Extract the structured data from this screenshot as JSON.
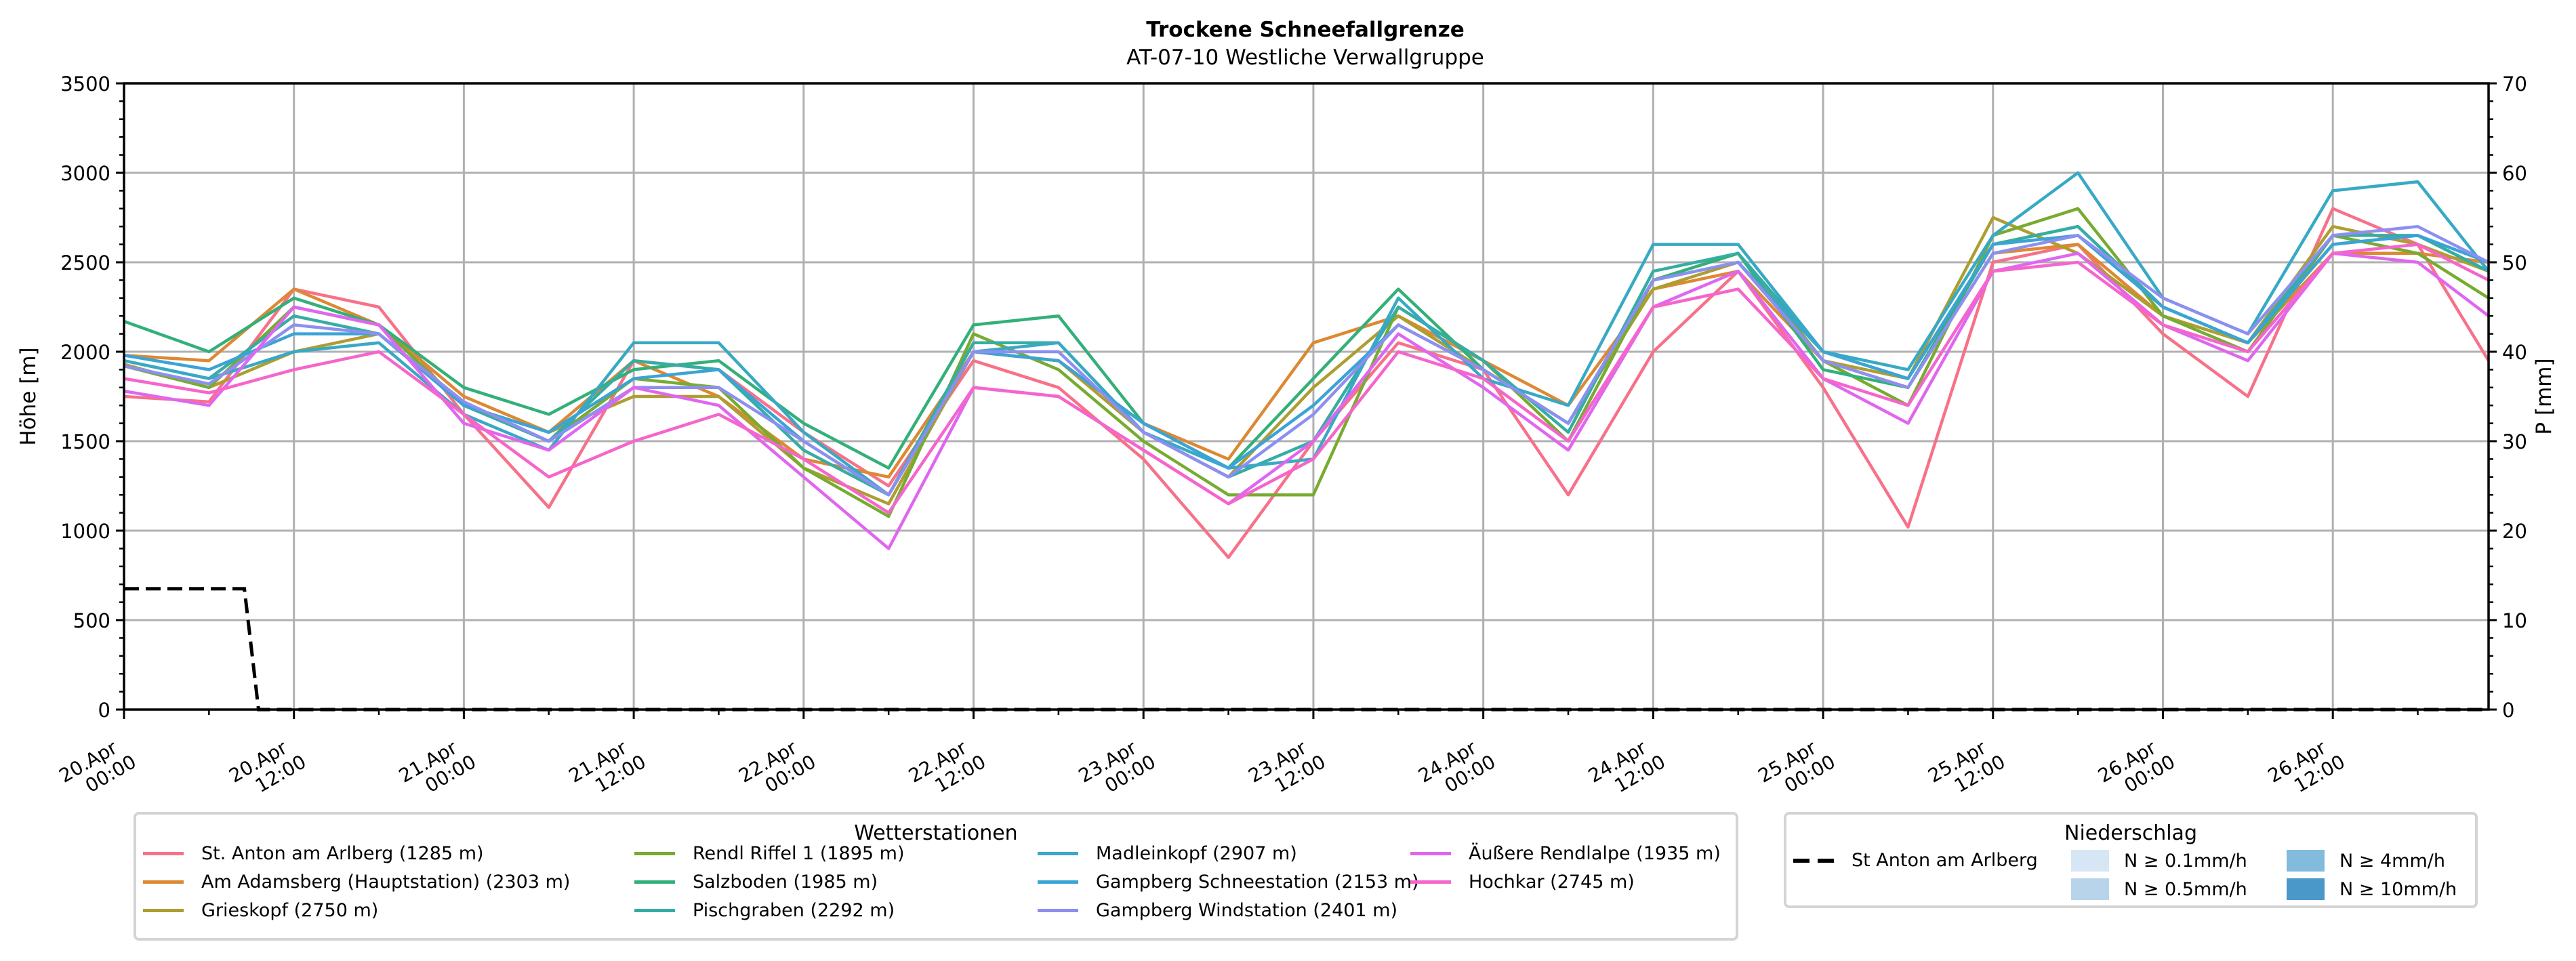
{
  "chart_data": {
    "type": "line",
    "title": "Trockene Schneefallgrenze",
    "subtitle": "AT-07-10 Westliche Verwallgruppe",
    "ylabel": "Höhe [m]",
    "y2label": "P [mm]",
    "ylim": [
      0,
      3500
    ],
    "y2lim": [
      0,
      70
    ],
    "yticks": [
      "0",
      "500",
      "1000",
      "1500",
      "2000",
      "2500",
      "3000",
      "3500"
    ],
    "y2ticks": [
      "0",
      "10",
      "20",
      "30",
      "40",
      "50",
      "60",
      "70"
    ],
    "xlim_hours": [
      0,
      167
    ],
    "x_start": "20.Apr 00:00",
    "xticks": [
      {
        "h": 0,
        "l1": "20.Apr",
        "l2": "00:00"
      },
      {
        "h": 12,
        "l1": "20.Apr",
        "l2": "12:00"
      },
      {
        "h": 24,
        "l1": "21.Apr",
        "l2": "00:00"
      },
      {
        "h": 36,
        "l1": "21.Apr",
        "l2": "12:00"
      },
      {
        "h": 48,
        "l1": "22.Apr",
        "l2": "00:00"
      },
      {
        "h": 60,
        "l1": "22.Apr",
        "l2": "12:00"
      },
      {
        "h": 72,
        "l1": "23.Apr",
        "l2": "00:00"
      },
      {
        "h": 84,
        "l1": "23.Apr",
        "l2": "12:00"
      },
      {
        "h": 96,
        "l1": "24.Apr",
        "l2": "00:00"
      },
      {
        "h": 108,
        "l1": "24.Apr",
        "l2": "12:00"
      },
      {
        "h": 120,
        "l1": "25.Apr",
        "l2": "00:00"
      },
      {
        "h": 132,
        "l1": "25.Apr",
        "l2": "12:00"
      },
      {
        "h": 144,
        "l1": "26.Apr",
        "l2": "00:00"
      },
      {
        "h": 156,
        "l1": "26.Apr",
        "l2": "12:00"
      }
    ],
    "grid": true,
    "x_hours": [
      0,
      6,
      12,
      18,
      24,
      30,
      36,
      42,
      48,
      54,
      60,
      66,
      72,
      78,
      84,
      90,
      96,
      102,
      108,
      114,
      120,
      126,
      132,
      138,
      144,
      150,
      156,
      162,
      167
    ],
    "series": [
      {
        "name": "St. Anton am Arlberg (1285 m)",
        "color": "#f77189",
        "values": [
          1750,
          1720,
          2350,
          2250,
          1650,
          1130,
          1950,
          1900,
          1550,
          1250,
          1950,
          1800,
          1400,
          850,
          1500,
          2050,
          1900,
          1200,
          2000,
          2450,
          1800,
          1020,
          2500,
          2600,
          2100,
          1750,
          2800,
          2600,
          1950
        ]
      },
      {
        "name": "Am Adamsberg (Hauptstation) (2303 m)",
        "color": "#dc8932",
        "values": [
          1980,
          1950,
          2350,
          2150,
          1750,
          1550,
          1950,
          1750,
          1400,
          1300,
          2000,
          1950,
          1600,
          1400,
          2050,
          2200,
          1950,
          1700,
          2350,
          2450,
          1950,
          1800,
          2550,
          2600,
          2200,
          2050,
          2550,
          2550,
          2500
        ]
      },
      {
        "name": "Grieskopf (2750 m)",
        "color": "#ae9d31",
        "values": [
          1930,
          1800,
          2000,
          2100,
          1700,
          1550,
          1750,
          1750,
          1350,
          1150,
          2000,
          1950,
          1550,
          1300,
          1800,
          2200,
          1900,
          1600,
          2350,
          2500,
          1950,
          1850,
          2750,
          2550,
          2200,
          2050,
          2700,
          2600,
          2450
        ]
      },
      {
        "name": "Rendl Riffel 1 (1895 m)",
        "color": "#77ab31",
        "values": [
          1920,
          1800,
          2250,
          2150,
          1700,
          1500,
          1850,
          1800,
          1350,
          1080,
          2100,
          1900,
          1500,
          1200,
          1200,
          2250,
          1950,
          1500,
          2400,
          2550,
          1950,
          1700,
          2650,
          2800,
          2200,
          2000,
          2650,
          2550,
          2300
        ]
      },
      {
        "name": "Salzboden (1985 m)",
        "color": "#33b07a",
        "values": [
          2170,
          2000,
          2300,
          2150,
          1800,
          1650,
          1900,
          1950,
          1600,
          1350,
          2150,
          2200,
          1600,
          1350,
          1850,
          2350,
          1900,
          1600,
          2400,
          2550,
          1900,
          1800,
          2600,
          2700,
          2250,
          2050,
          2600,
          2650,
          2450
        ]
      },
      {
        "name": "Pischgraben (2292 m)",
        "color": "#36ada4",
        "values": [
          1950,
          1850,
          2200,
          2100,
          1700,
          1500,
          1950,
          1900,
          1450,
          1200,
          2050,
          2050,
          1550,
          1300,
          1500,
          2250,
          1950,
          1550,
          2450,
          2550,
          2000,
          1850,
          2600,
          2700,
          2250,
          2050,
          2650,
          2650,
          2450
        ]
      },
      {
        "name": "Madleinkopf (2907 m)",
        "color": "#38a9c5",
        "values": [
          1950,
          1850,
          2000,
          2050,
          1650,
          1450,
          2050,
          2050,
          1550,
          1200,
          2000,
          2050,
          1550,
          1350,
          1400,
          2300,
          1850,
          1700,
          2600,
          2600,
          2000,
          1900,
          2650,
          3000,
          2300,
          2100,
          2900,
          2950,
          2450
        ]
      },
      {
        "name": "Gampberg Schneestation (2153 m)",
        "color": "#3ba3d6",
        "values": [
          1980,
          1900,
          2100,
          2100,
          1700,
          1550,
          1850,
          1900,
          1500,
          1200,
          2000,
          1950,
          1600,
          1350,
          1700,
          2150,
          1900,
          1600,
          2400,
          2500,
          2000,
          1850,
          2600,
          2650,
          2250,
          2050,
          2600,
          2650,
          2500
        ]
      },
      {
        "name": "Gampberg Windstation (2401 m)",
        "color": "#8d8ff0",
        "values": [
          1920,
          1820,
          2150,
          2100,
          1720,
          1500,
          1800,
          1800,
          1500,
          1200,
          2000,
          2000,
          1550,
          1300,
          1650,
          2150,
          1900,
          1600,
          2400,
          2500,
          1950,
          1800,
          2550,
          2650,
          2300,
          2100,
          2650,
          2700,
          2500
        ]
      },
      {
        "name": "Äußere Rendlalpe (1935 m)",
        "color": "#e066ef",
        "values": [
          1780,
          1700,
          2250,
          2150,
          1600,
          1450,
          1800,
          1700,
          1300,
          900,
          1800,
          1750,
          1450,
          1150,
          1500,
          2100,
          1800,
          1450,
          2250,
          2450,
          1850,
          1600,
          2450,
          2550,
          2150,
          1950,
          2550,
          2500,
          2200
        ]
      },
      {
        "name": "Hochkar (2745 m)",
        "color": "#f565cc",
        "values": [
          1850,
          1770,
          1900,
          2000,
          1650,
          1300,
          1500,
          1650,
          1400,
          1100,
          1800,
          1750,
          1450,
          1150,
          1400,
          2000,
          1850,
          1500,
          2250,
          2350,
          1850,
          1700,
          2450,
          2500,
          2150,
          2000,
          2550,
          2600,
          2400
        ]
      }
    ],
    "precip_series": {
      "name": "St Anton am Arlberg",
      "x_hours": [
        0,
        8.5,
        9.5,
        167
      ],
      "values": [
        13.5,
        13.5,
        0,
        0
      ]
    },
    "legend_stations": {
      "title": "Wetterstationen",
      "labels": [
        "St. Anton am Arlberg (1285 m)",
        "Am Adamsberg (Hauptstation) (2303 m)",
        "Grieskopf (2750 m)",
        "Rendl Riffel 1 (1895 m)",
        "Salzboden (1985 m)",
        "Pischgraben (2292 m)",
        "Madleinkopf (2907 m)",
        "Gampberg Schneestation (2153 m)",
        "Gampberg Windstation (2401 m)",
        "Äußere Rendlalpe (1935 m)",
        "Hochkar (2745 m)"
      ],
      "placement": "bottom-left"
    },
    "legend_precip": {
      "title": "Niederschlag",
      "line_label": "St Anton am Arlberg",
      "classes": [
        {
          "label": "N ≥ 0.1mm/h",
          "color": "#d6e6f4"
        },
        {
          "label": "N ≥ 0.5mm/h",
          "color": "#b7d4ea"
        },
        {
          "label": "N ≥ 4mm/h",
          "color": "#82bbdb"
        },
        {
          "label": "N ≥ 10mm/h",
          "color": "#4a98c9"
        }
      ],
      "placement": "bottom-right"
    }
  }
}
